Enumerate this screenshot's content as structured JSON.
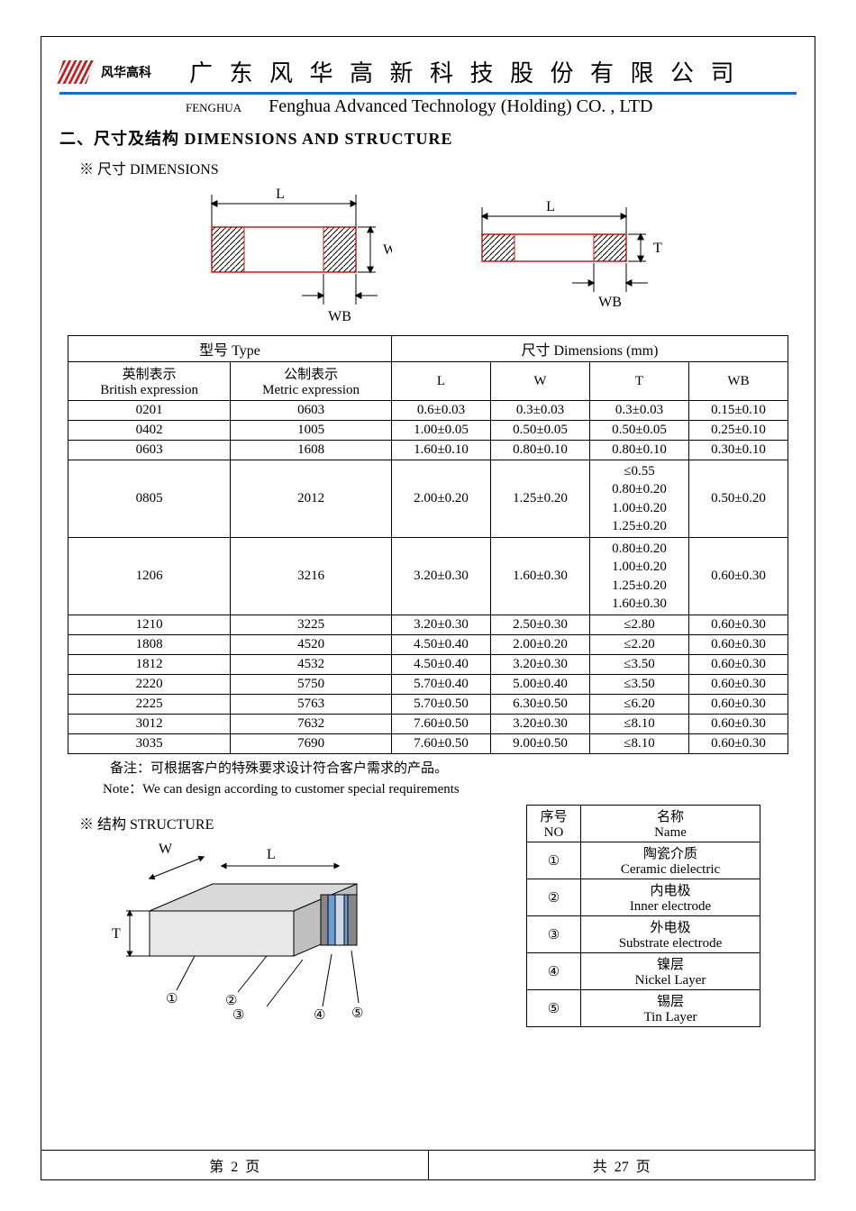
{
  "header": {
    "brand_cn": "风华高科",
    "company_cn": "广 东 风 华 高 新 科 技 股 份 有 限 公 司",
    "brand_en": "FENGHUA",
    "company_en": "Fenghua Advanced Technology (Holding) CO. , LTD"
  },
  "section_title": "二、尺寸及结构    DIMENSIONS AND STRUCTURE",
  "dim_label": "※ 尺寸 DIMENSIONS",
  "diagram_labels": {
    "L": "L",
    "W": "W",
    "T": "T",
    "WB": "WB"
  },
  "dim_table": {
    "header_type": "型号 Type",
    "header_dim": "尺寸     Dimensions     (mm)",
    "col_british_cn": "英制表示",
    "col_british_en": "British expression",
    "col_metric_cn": "公制表示",
    "col_metric_en": "Metric expression",
    "col_L": "L",
    "col_W": "W",
    "col_T": "T",
    "col_WB": "WB",
    "rows": [
      {
        "b": "0201",
        "m": "0603",
        "L": "0.6±0.03",
        "W": "0.3±0.03",
        "T": "0.3±0.03",
        "WB": "0.15±0.10"
      },
      {
        "b": "0402",
        "m": "1005",
        "L": "1.00±0.05",
        "W": "0.50±0.05",
        "T": "0.50±0.05",
        "WB": "0.25±0.10"
      },
      {
        "b": "0603",
        "m": "1608",
        "L": "1.60±0.10",
        "W": "0.80±0.10",
        "T": "0.80±0.10",
        "WB": "0.30±0.10"
      },
      {
        "b": "0805",
        "m": "2012",
        "L": "2.00±0.20",
        "W": "1.25±0.20",
        "T": "≤0.55\n0.80±0.20\n1.00±0.20\n1.25±0.20",
        "WB": "0.50±0.20"
      },
      {
        "b": "1206",
        "m": "3216",
        "L": "3.20±0.30",
        "W": "1.60±0.30",
        "T": "0.80±0.20\n1.00±0.20\n1.25±0.20\n1.60±0.30",
        "WB": "0.60±0.30"
      },
      {
        "b": "1210",
        "m": "3225",
        "L": "3.20±0.30",
        "W": "2.50±0.30",
        "T": "≤2.80",
        "WB": "0.60±0.30"
      },
      {
        "b": "1808",
        "m": "4520",
        "L": "4.50±0.40",
        "W": "2.00±0.20",
        "T": "≤2.20",
        "WB": "0.60±0.30"
      },
      {
        "b": "1812",
        "m": "4532",
        "L": "4.50±0.40",
        "W": "3.20±0.30",
        "T": "≤3.50",
        "WB": "0.60±0.30"
      },
      {
        "b": "2220",
        "m": "5750",
        "L": "5.70±0.40",
        "W": "5.00±0.40",
        "T": "≤3.50",
        "WB": "0.60±0.30"
      },
      {
        "b": "2225",
        "m": "5763",
        "L": "5.70±0.50",
        "W": "6.30±0.50",
        "T": "≤6.20",
        "WB": "0.60±0.30"
      },
      {
        "b": "3012",
        "m": "7632",
        "L": "7.60±0.50",
        "W": "3.20±0.30",
        "T": "≤8.10",
        "WB": "0.60±0.30"
      },
      {
        "b": "3035",
        "m": "7690",
        "L": "7.60±0.50",
        "W": "9.00±0.50",
        "T": "≤8.10",
        "WB": "0.60±0.30"
      }
    ]
  },
  "note_cn": "备注：可根据客户的特殊要求设计符合客户需求的产品。",
  "note_en": "Note：We can design according to customer special requirements",
  "struct_label": "※ 结构 STRUCTURE",
  "struct_table": {
    "col_no_cn": "序号",
    "col_no_en": "NO",
    "col_name_cn": "名称",
    "col_name_en": "Name",
    "rows": [
      {
        "no": "①",
        "cn": "陶瓷介质",
        "en": "Ceramic   dielectric"
      },
      {
        "no": "②",
        "cn": "内电极",
        "en": "Inner   electrode"
      },
      {
        "no": "③",
        "cn": "外电极",
        "en": "Substrate   electrode"
      },
      {
        "no": "④",
        "cn": "镍层",
        "en": "Nickel Layer"
      },
      {
        "no": "⑤",
        "cn": "锡层",
        "en": "Tin Layer"
      }
    ]
  },
  "footer": {
    "page_cn_prefix": "第",
    "page_num": "2",
    "page_cn_suffix": "页",
    "total_prefix": "共",
    "total_num": "27",
    "total_suffix": "页"
  },
  "colors": {
    "blue": "#1d6bc9",
    "red": "#d01818",
    "gray_body": "#d9d9d9",
    "gray_dark": "#808080",
    "term_bg": "#6aa0d8",
    "hatch": "#000"
  }
}
